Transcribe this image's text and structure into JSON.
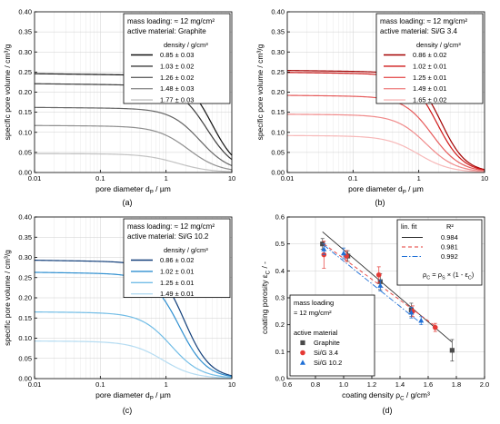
{
  "chart_data": [
    {
      "panel": "(a)",
      "type": "line",
      "xlabel": "pore diameter d",
      "xlabel_sub": "P",
      "xlabel_unit": "  /  µm",
      "ylabel": "specific pore volume  /  cm³/g",
      "x_scale": "log",
      "xlim": [
        0.01,
        10
      ],
      "ylim": [
        0,
        0.4
      ],
      "x_ticks": [
        "0.01",
        "0.1",
        "1",
        "10"
      ],
      "y_ticks": [
        "0.00",
        "0.05",
        "0.10",
        "0.15",
        "0.20",
        "0.25",
        "0.30",
        "0.35",
        "0.40"
      ],
      "grid": true,
      "legend_position": "top-right",
      "info_lines": [
        "mass loading:  ≈ 12 mg/cm²",
        "active material:  Graphite"
      ],
      "legend_title": "density  /  g/cm³",
      "series": [
        {
          "name": "0.85 ± 0.03",
          "color": "#111111",
          "plateau": 0.246,
          "x50": 5.0,
          "steep": 2.2
        },
        {
          "name": "1.03 ± 0.02",
          "color": "#3a3a3a",
          "plateau": 0.221,
          "x50": 4.2,
          "steep": 2.0
        },
        {
          "name": "1.26 ± 0.02",
          "color": "#666666",
          "plateau": 0.162,
          "x50": 3.3,
          "steep": 1.9
        },
        {
          "name": "1.48 ± 0.03",
          "color": "#8f8f8f",
          "plateau": 0.117,
          "x50": 2.2,
          "steep": 1.8
        },
        {
          "name": "1.77 ± 0.03",
          "color": "#c2c2c2",
          "plateau": 0.047,
          "x50": 1.5,
          "steep": 1.7
        }
      ]
    },
    {
      "panel": "(b)",
      "type": "line",
      "xlabel": "pore diameter d",
      "xlabel_sub": "P",
      "xlabel_unit": "  /  µm",
      "ylabel": "specific pore volume  /  cm³/g",
      "x_scale": "log",
      "xlim": [
        0.01,
        10
      ],
      "ylim": [
        0,
        0.4
      ],
      "x_ticks": [
        "0.01",
        "0.1",
        "1",
        "10"
      ],
      "y_ticks": [
        "0.00",
        "0.05",
        "0.10",
        "0.15",
        "0.20",
        "0.25",
        "0.30",
        "0.35",
        "0.40"
      ],
      "grid": true,
      "legend_position": "top-right",
      "info_lines": [
        "mass loading:  ≈ 12 mg/cm²",
        "active material:  Si/G  3.4"
      ],
      "legend_title": "density  /  g/cm³",
      "series": [
        {
          "name": "0.86 ± 0.02",
          "color": "#a30000",
          "plateau": 0.254,
          "x50": 2.2,
          "steep": 2.3
        },
        {
          "name": "1.02 ± 0.01",
          "color": "#cf1818",
          "plateau": 0.249,
          "x50": 1.9,
          "steep": 2.2
        },
        {
          "name": "1.25 ± 0.01",
          "color": "#e65a5a",
          "plateau": 0.192,
          "x50": 1.6,
          "steep": 2.0
        },
        {
          "name": "1.49 ± 0.01",
          "color": "#f08a8a",
          "plateau": 0.145,
          "x50": 1.3,
          "steep": 1.9
        },
        {
          "name": "1.65 ± 0.02",
          "color": "#f7b8b8",
          "plateau": 0.092,
          "x50": 1.0,
          "steep": 1.8
        }
      ]
    },
    {
      "panel": "(c)",
      "type": "line",
      "xlabel": "pore diameter d",
      "xlabel_sub": "P",
      "xlabel_unit": "  /  µm",
      "ylabel": "specific pore volume  /  cm³/g",
      "x_scale": "log",
      "xlim": [
        0.01,
        10
      ],
      "ylim": [
        0,
        0.4
      ],
      "x_ticks": [
        "0.01",
        "0.1",
        "1",
        "10"
      ],
      "y_ticks": [
        "0.00",
        "0.05",
        "0.10",
        "0.15",
        "0.20",
        "0.25",
        "0.30",
        "0.35",
        "0.40"
      ],
      "grid": true,
      "legend_position": "top-right",
      "info_lines": [
        "mass loading:  ≈ 12 mg/cm²",
        "active material:  Si/G 10.2"
      ],
      "legend_title": "density  /  g/cm³",
      "series": [
        {
          "name": "0.86 ± 0.02",
          "color": "#123f7a",
          "plateau": 0.293,
          "x50": 1.9,
          "steep": 2.2
        },
        {
          "name": "1.02 ± 0.01",
          "color": "#2f8fd0",
          "plateau": 0.263,
          "x50": 1.6,
          "steep": 2.1
        },
        {
          "name": "1.25 ± 0.01",
          "color": "#72bde6",
          "plateau": 0.165,
          "x50": 1.2,
          "steep": 1.9
        },
        {
          "name": "1.49 ± 0.01",
          "color": "#b5dcf2",
          "plateau": 0.093,
          "x50": 0.9,
          "steep": 1.8
        }
      ]
    },
    {
      "panel": "(d)",
      "type": "scatter",
      "xlabel": "coating density ρ",
      "xlabel_sub": "C",
      "xlabel_unit": "  /  g/cm³",
      "ylabel": "coating porosity ε",
      "ylabel_sub": "C",
      "ylabel_unit": "  /  -",
      "xlim": [
        0.6,
        2.0
      ],
      "ylim": [
        0,
        0.6
      ],
      "x_ticks": [
        "0.6",
        "0.8",
        "1.0",
        "1.2",
        "1.4",
        "1.6",
        "1.8",
        "2.0"
      ],
      "y_ticks": [
        "0.0",
        "0.1",
        "0.2",
        "0.3",
        "0.4",
        "0.5",
        "0.6"
      ],
      "grid": true,
      "fit_legend": {
        "header": "lin. fit",
        "r2_header": "R²",
        "r2_values": [
          "0.984",
          "0.981",
          "0.992"
        ],
        "formula": "ρ",
        "formula_rest": " = ρ",
        "formula_rest2": " × (1 - ε",
        "formula_end": ")",
        "sub_c": "C",
        "sub_s": "S"
      },
      "mass_legend": {
        "line1": "mass loading",
        "line2": "≈ 12 mg/cm²",
        "title": "active material",
        "entries": [
          "Graphite",
          "Si/G  3.4",
          "Si/G 10.2"
        ]
      },
      "series": [
        {
          "name": "Graphite",
          "marker": "square",
          "color": "#4a4a4a",
          "line_color": "#2a2a2a",
          "dash": "",
          "fit": [
            [
              0.85,
              0.545
            ],
            [
              1.77,
              0.135
            ]
          ],
          "points": [
            {
              "x": 0.85,
              "y": 0.5,
              "err": 0.02
            },
            {
              "x": 1.03,
              "y": 0.455,
              "err": 0.02
            },
            {
              "x": 1.26,
              "y": 0.36,
              "err": 0.03
            },
            {
              "x": 1.48,
              "y": 0.255,
              "err": 0.025
            },
            {
              "x": 1.77,
              "y": 0.105,
              "err": 0.04
            }
          ]
        },
        {
          "name": "Si/G  3.4",
          "marker": "circle",
          "color": "#e53935",
          "line_color": "#e53935",
          "dash": "4,3",
          "fit": [
            [
              0.86,
              0.5
            ],
            [
              1.65,
              0.195
            ]
          ],
          "points": [
            {
              "x": 0.86,
              "y": 0.46,
              "err": 0.05
            },
            {
              "x": 1.02,
              "y": 0.455,
              "err": 0.02
            },
            {
              "x": 1.25,
              "y": 0.385,
              "err": 0.03
            },
            {
              "x": 1.49,
              "y": 0.25,
              "err": 0.02
            },
            {
              "x": 1.65,
              "y": 0.19,
              "err": 0.015
            }
          ]
        },
        {
          "name": "Si/G 10.2",
          "marker": "triangle",
          "color": "#1e6fd6",
          "line_color": "#1e6fd6",
          "dash": "6,2,1.5,2",
          "fit": [
            [
              0.86,
              0.495
            ],
            [
              1.55,
              0.205
            ]
          ],
          "points": [
            {
              "x": 0.86,
              "y": 0.48,
              "err": 0.02
            },
            {
              "x": 1.0,
              "y": 0.465,
              "err": 0.02
            },
            {
              "x": 1.26,
              "y": 0.345,
              "err": 0.02
            },
            {
              "x": 1.48,
              "y": 0.245,
              "err": 0.02
            },
            {
              "x": 1.55,
              "y": 0.215,
              "err": 0.015
            }
          ]
        }
      ]
    }
  ]
}
